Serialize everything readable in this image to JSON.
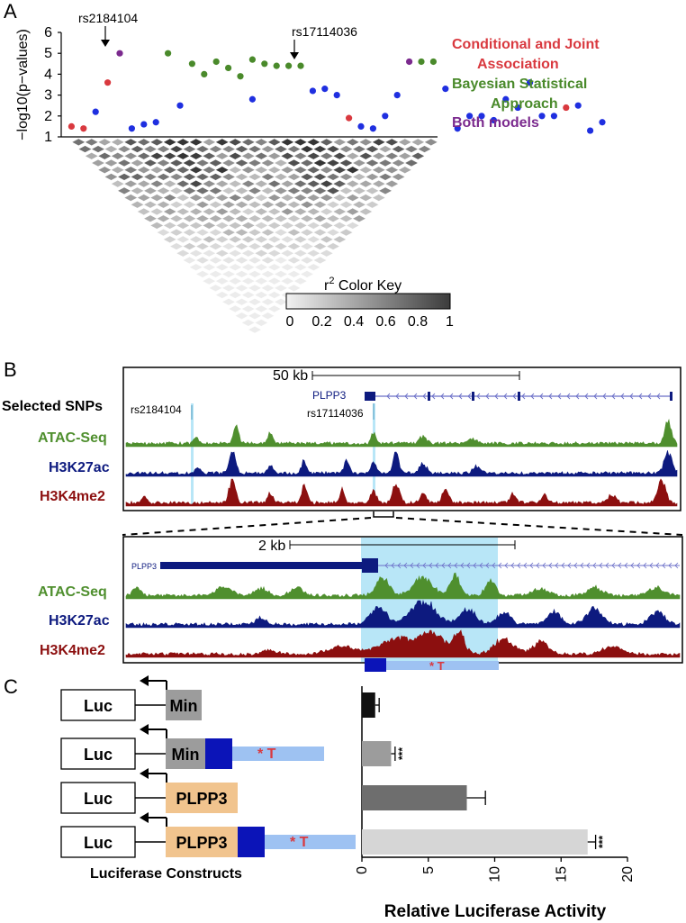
{
  "panels": {
    "a": "A",
    "b": "B",
    "c": "C"
  },
  "colors": {
    "red": "#d9393f",
    "green": "#4a8a2b",
    "blue": "#1f2fe0",
    "purple": "#7b2a8e",
    "atac": "#4f8f2e",
    "h3k27": "#0d1a7f",
    "h3k4": "#8c0f0f",
    "highlight": "#b8e6f7",
    "orange": "#f1c48e",
    "darkblue": "#0b14b8",
    "lightblue": "#9ec2f2"
  },
  "panel_a": {
    "ylabel": "−log10(p−values)",
    "yticks": [
      "1",
      "2",
      "3",
      "4",
      "5",
      "6"
    ],
    "annotations": [
      "rs2184104",
      "rs17114036"
    ],
    "legend": [
      "Conditional and Joint",
      "Association",
      "Bayesian Statistical",
      "Approach",
      "Both models"
    ],
    "color_key_title": "r",
    "color_key_sup": "2",
    "color_key_rest": " Color Key",
    "color_key_ticks": [
      "0",
      "0.2",
      "0.4",
      "0.6",
      "0.8",
      "1"
    ]
  },
  "panel_b": {
    "scale1": "50 kb",
    "gene": "PLPP3",
    "selected_snps": "Selected SNPs",
    "snp1": "rs2184104",
    "snp2": "rs17114036",
    "tracks": [
      "ATAC-Seq",
      "H3K27ac",
      "H3K4me2"
    ],
    "scale2": "2 kb",
    "gene_small": "PLPP3",
    "allele": "* T"
  },
  "panel_c": {
    "luc": "Luc",
    "constructs": [
      "Min",
      "Min",
      "PLPP3",
      "PLPP3"
    ],
    "allele": "* T",
    "constructs_label": "Luciferase Constructs",
    "xlabel": "Relative Luciferase Activity",
    "sig": "***"
  },
  "chart_data": [
    {
      "type": "scatter",
      "ylabel": "−log10(p−values)",
      "ylim": [
        1,
        6
      ],
      "series": [
        {
          "name": "Conditional and Joint Association",
          "points": [
            [
              1,
              1.5
            ],
            [
              2,
              1.4
            ],
            [
              4,
              3.6
            ],
            [
              24,
              1.9
            ],
            [
              42,
              2.4
            ]
          ]
        },
        {
          "name": "Bayesian Statistical Approach",
          "points": [
            [
              9,
              5.0
            ],
            [
              11,
              4.5
            ],
            [
              12,
              4.0
            ],
            [
              13,
              4.6
            ],
            [
              14,
              4.3
            ],
            [
              15,
              3.9
            ],
            [
              16,
              4.7
            ],
            [
              17,
              4.5
            ],
            [
              18,
              4.4
            ],
            [
              19,
              4.4
            ],
            [
              20,
              4.4
            ],
            [
              30,
              4.6
            ],
            [
              31,
              4.6
            ]
          ]
        },
        {
          "name": "Both models",
          "points": [
            [
              5,
              5.0
            ],
            [
              29,
              4.6
            ]
          ]
        },
        {
          "name": "other",
          "points": [
            [
              3,
              2.2
            ],
            [
              6,
              1.4
            ],
            [
              7,
              1.6
            ],
            [
              8,
              1.7
            ],
            [
              10,
              2.5
            ],
            [
              16,
              2.8
            ],
            [
              21,
              3.2
            ],
            [
              22,
              3.3
            ],
            [
              23,
              3.0
            ],
            [
              25,
              1.5
            ],
            [
              26,
              1.4
            ],
            [
              27,
              2.0
            ],
            [
              28,
              3.0
            ],
            [
              32,
              3.3
            ],
            [
              33,
              1.4
            ],
            [
              34,
              2.0
            ],
            [
              35,
              2.0
            ],
            [
              36,
              1.8
            ],
            [
              37,
              2.8
            ],
            [
              38,
              2.4
            ],
            [
              39,
              3.6
            ],
            [
              40,
              2.0
            ],
            [
              41,
              2.0
            ],
            [
              43,
              2.5
            ],
            [
              44,
              1.3
            ],
            [
              45,
              1.7
            ]
          ]
        }
      ]
    },
    {
      "type": "bar",
      "orientation": "horizontal",
      "categories": [
        "Min",
        "Min + * T",
        "PLPP3",
        "PLPP3 + * T"
      ],
      "values": [
        1.0,
        2.2,
        7.9,
        17.0
      ],
      "errors": [
        0.3,
        0.3,
        1.4,
        0.6
      ],
      "significance": [
        "",
        "***",
        "",
        "***"
      ],
      "xlabel": "Relative Luciferase Activity",
      "xlim": [
        0,
        20
      ],
      "xticks": [
        0,
        5,
        10,
        15,
        20
      ]
    }
  ]
}
